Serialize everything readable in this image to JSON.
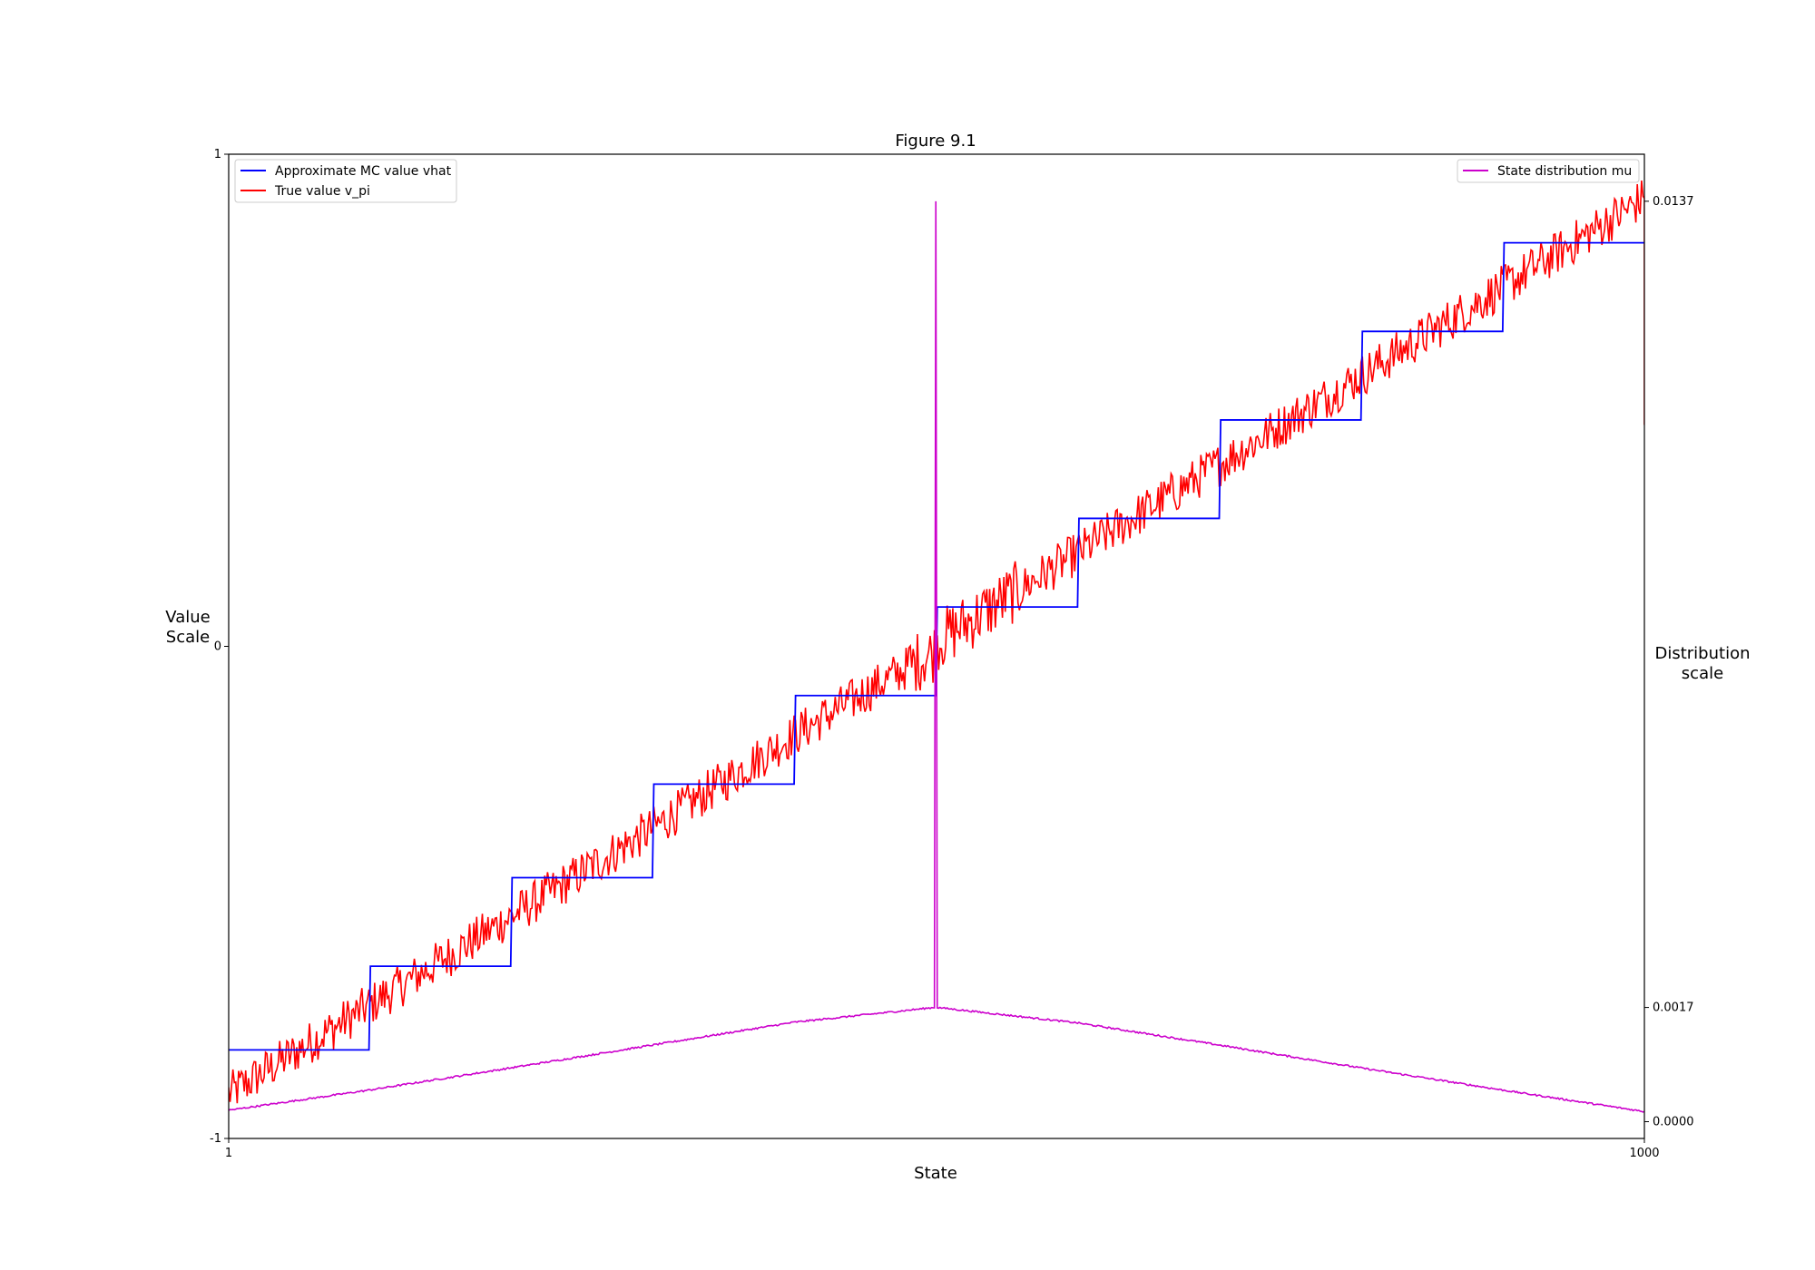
{
  "chart_data": {
    "type": "line",
    "title": "Figure 9.1",
    "xlabel": "State",
    "ylabel_lines": [
      "Value",
      "Scale"
    ],
    "y2label_lines": [
      "Distribution",
      "scale"
    ],
    "xlim": [
      1,
      1000
    ],
    "ylim": [
      -1,
      1
    ],
    "y2lim": [
      -0.00025,
      0.0144
    ],
    "xticks": [
      1,
      1000
    ],
    "x_tick_labels": [
      "1",
      "1000"
    ],
    "yticks": [
      -1,
      0,
      1
    ],
    "y_tick_labels": [
      "-1",
      "0",
      "1"
    ],
    "y2ticks": [
      0.0,
      0.0017,
      0.0137
    ],
    "y2_tick_labels": [
      "0.0000",
      "0.0017",
      "0.0137"
    ],
    "grid": false,
    "legend_left_position": "upper left",
    "legend_right_position": "upper right",
    "series": [
      {
        "name": "Approximate MC value vhat",
        "axis": "left",
        "color": "#0000ff",
        "style": "step",
        "group_size": 100,
        "values": [
          -0.82,
          -0.65,
          -0.47,
          -0.28,
          -0.1,
          0.08,
          0.26,
          0.46,
          0.64,
          0.82
        ]
      },
      {
        "name": "True value v_pi",
        "axis": "left",
        "color": "#ff0000",
        "style": "noisy-line",
        "x": [
          1,
          100,
          200,
          300,
          400,
          499,
          500,
          501,
          600,
          700,
          800,
          900,
          1000
        ],
        "values": [
          -0.91,
          -0.73,
          -0.55,
          -0.37,
          -0.18,
          -0.01,
          0.0,
          0.01,
          0.19,
          0.37,
          0.55,
          0.73,
          0.91
        ],
        "noise_amplitude": 0.045
      },
      {
        "name": "State distribution mu",
        "axis": "right",
        "color": "#cc00cc",
        "style": "line",
        "x": [
          1,
          100,
          200,
          300,
          400,
          499,
          500,
          501,
          600,
          700,
          800,
          900,
          1000
        ],
        "values": [
          0.00017,
          0.00047,
          0.0008,
          0.00114,
          0.00148,
          0.0017,
          0.0137,
          0.0017,
          0.00147,
          0.00114,
          0.0008,
          0.00047,
          0.00015
        ]
      }
    ]
  }
}
